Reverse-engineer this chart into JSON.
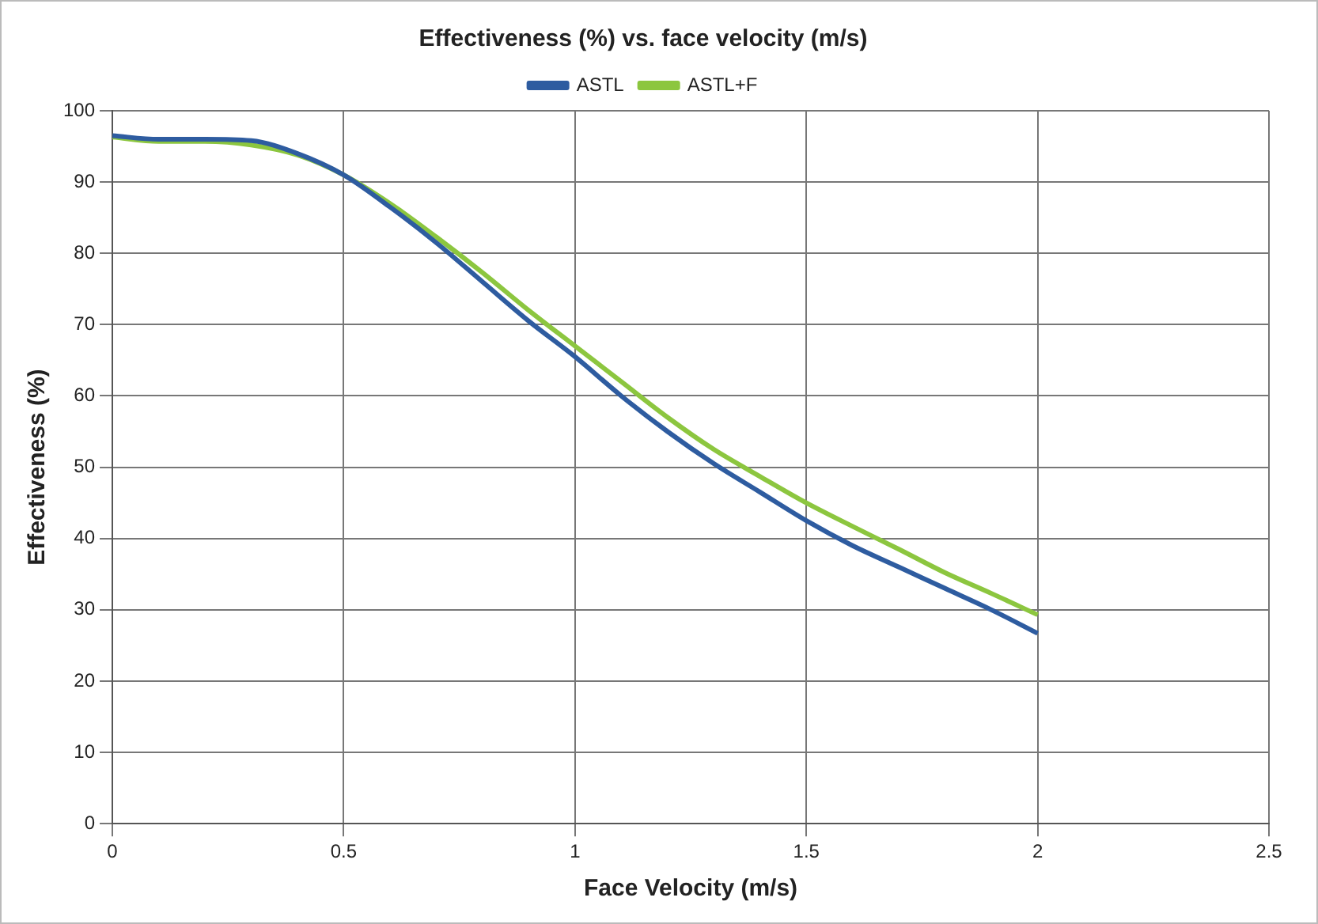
{
  "chart_data": {
    "type": "line",
    "title": "Effectiveness (%) vs. face velocity (m/s)",
    "xlabel": "Face Velocity (m/s)",
    "ylabel": "Effectiveness (%)",
    "x": [
      0,
      0.1,
      0.2,
      0.3,
      0.4,
      0.5,
      0.6,
      0.7,
      0.8,
      0.9,
      1.0,
      1.1,
      1.2,
      1.3,
      1.4,
      1.5,
      1.6,
      1.7,
      1.8,
      1.9,
      2.0
    ],
    "series": [
      {
        "name": "ASTL",
        "color": "#2e5ca0",
        "values": [
          96.5,
          96,
          96,
          95.8,
          94,
          91,
          86.5,
          81.5,
          76,
          70.5,
          65.5,
          60,
          55,
          50.5,
          46.5,
          42.5,
          39,
          36,
          33,
          30,
          26.7
        ]
      },
      {
        "name": "ASTL+F",
        "color": "#8cc63f",
        "values": [
          96.3,
          95.7,
          95.7,
          95.2,
          93.8,
          91,
          87,
          82.3,
          77.3,
          72,
          67,
          62,
          57,
          52.5,
          48.7,
          45,
          41.7,
          38.5,
          35.2,
          32.3,
          29.3
        ]
      }
    ],
    "xlim": [
      0,
      2.5
    ],
    "xticks": [
      0,
      0.5,
      1,
      1.5,
      2,
      2.5
    ],
    "ylim": [
      0,
      100
    ],
    "yticks": [
      0,
      10,
      20,
      30,
      40,
      50,
      60,
      70,
      80,
      90,
      100
    ],
    "grid": true,
    "legend": "top",
    "marker": "none",
    "line_style": "solid"
  }
}
